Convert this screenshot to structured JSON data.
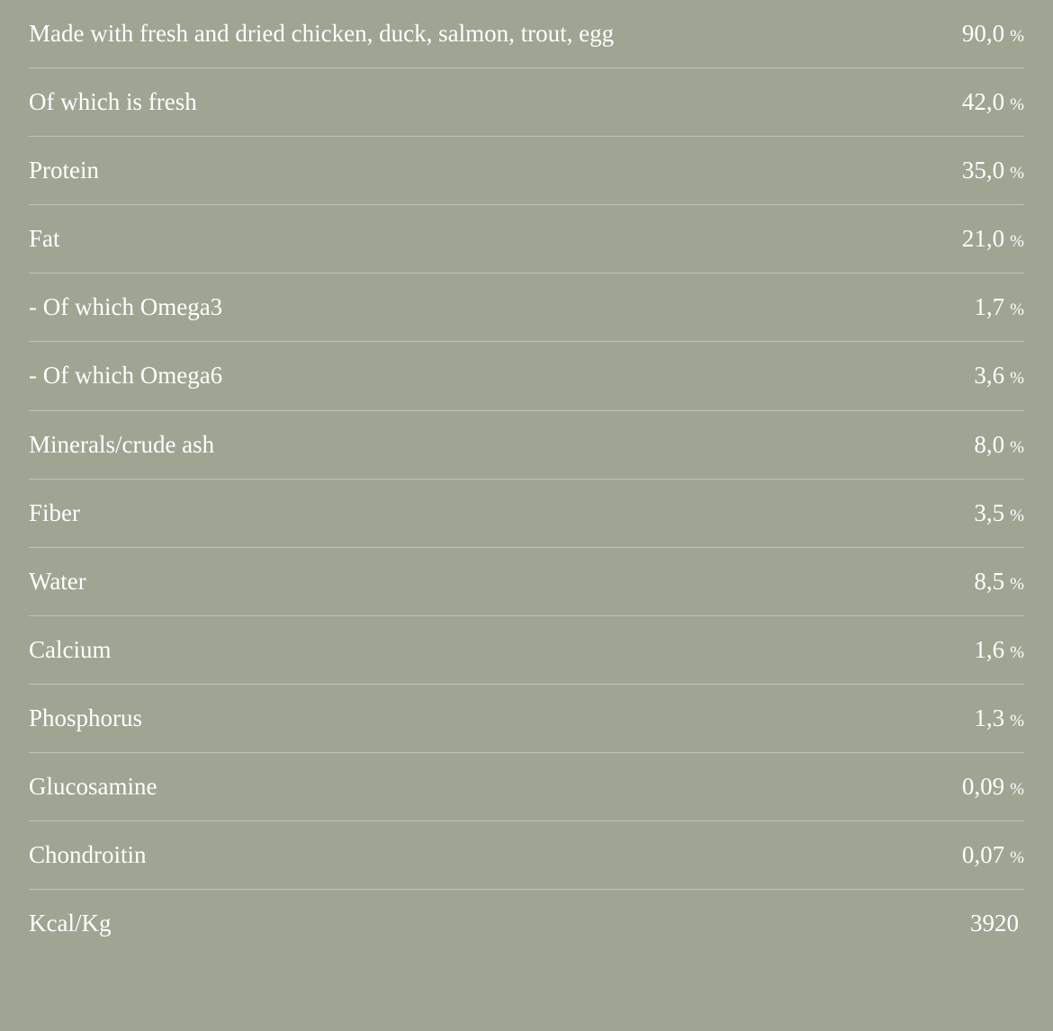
{
  "table": {
    "background_color": "#9ea592",
    "text_color": "#ffffff",
    "divider_color": "rgba(255,255,255,0.35)",
    "label_fontsize": 27,
    "value_fontsize": 27,
    "unit_fontsize": 19,
    "rows": [
      {
        "label": "Made with fresh and dried chicken, duck, salmon, trout, egg",
        "value": "90,0",
        "unit": "%"
      },
      {
        "label": "Of which is fresh",
        "value": "42,0",
        "unit": "%"
      },
      {
        "label": "Protein",
        "value": "35,0",
        "unit": "%"
      },
      {
        "label": "Fat",
        "value": "21,0",
        "unit": "%"
      },
      {
        "label": "- Of which Omega3",
        "value": "1,7",
        "unit": "%"
      },
      {
        "label": "- Of which Omega6",
        "value": "3,6",
        "unit": "%"
      },
      {
        "label": "Minerals/crude ash",
        "value": "8,0",
        "unit": "%"
      },
      {
        "label": "Fiber",
        "value": "3,5",
        "unit": "%"
      },
      {
        "label": "Water",
        "value": "8,5",
        "unit": "%"
      },
      {
        "label": "Calcium",
        "value": "1,6",
        "unit": "%"
      },
      {
        "label": "Phosphorus",
        "value": "1,3",
        "unit": "%"
      },
      {
        "label": "Glucosamine",
        "value": "0,09",
        "unit": "%"
      },
      {
        "label": "Chondroitin",
        "value": "0,07",
        "unit": "%"
      },
      {
        "label": "Kcal/Kg",
        "value": "3920",
        "unit": ""
      }
    ]
  }
}
